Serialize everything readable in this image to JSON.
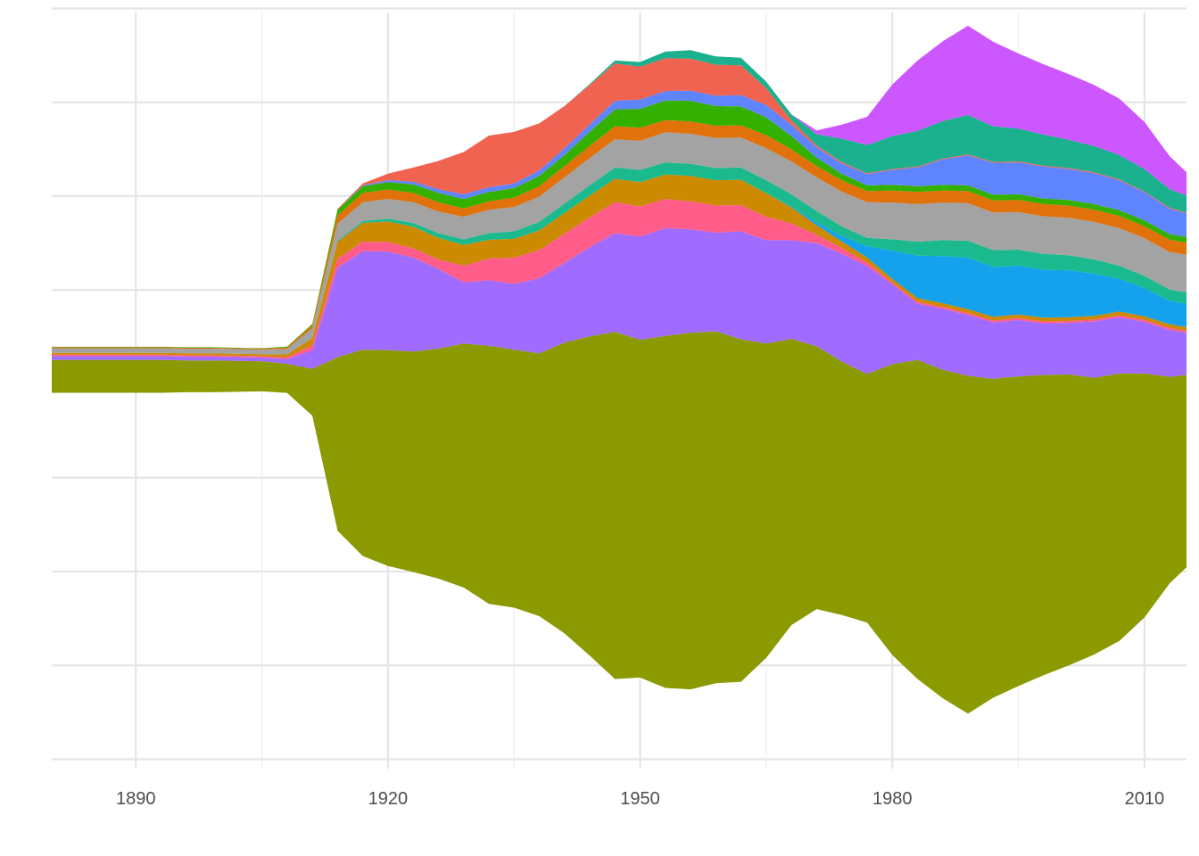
{
  "chart_data": {
    "type": "area",
    "subtype": "streamgraph",
    "title": "",
    "xlabel": "",
    "ylabel": "",
    "xlim": [
      1880,
      2015
    ],
    "ylim": [
      -41000,
      39000
    ],
    "x_ticks": [
      1890,
      1920,
      1950,
      1980,
      2010
    ],
    "x_tick_labels": [
      "1890",
      "1920",
      "1950",
      "1980",
      "2010"
    ],
    "y_gridlines": [
      -40000,
      -30000,
      -20000,
      -10000,
      0,
      10000,
      20000,
      30000,
      40000
    ],
    "y_tick_labels_visible": false,
    "grid": true,
    "legend": "none",
    "background": "#ffffff",
    "x": [
      1880,
      1883,
      1887,
      1890,
      1893,
      1896,
      1899,
      1902,
      1905,
      1908,
      1911,
      1914,
      1917,
      1920,
      1923,
      1926,
      1929,
      1932,
      1935,
      1938,
      1941,
      1944,
      1947,
      1950,
      1953,
      1956,
      1959,
      1962,
      1965,
      1968,
      1971,
      1974,
      1977,
      1980,
      1983,
      1986,
      1989,
      1992,
      1995,
      1998,
      2001,
      2004,
      2007,
      2010,
      2013,
      2015
    ],
    "series": [
      {
        "color": "#8b9a00",
        "values": [
          3500,
          3500,
          3500,
          3500,
          3500,
          3400,
          3400,
          3300,
          3200,
          3100,
          5000,
          18500,
          22000,
          23000,
          23500,
          24500,
          26000,
          27500,
          27500,
          28000,
          31000,
          34000,
          37000,
          36000,
          37500,
          38000,
          37500,
          36500,
          33500,
          30500,
          28000,
          27000,
          26500,
          31000,
          34000,
          35000,
          36000,
          34000,
          33000,
          32000,
          31000,
          29500,
          28500,
          26000,
          22000,
          20500
        ]
      },
      {
        "color": "#a06bff",
        "values": [
          400,
          400,
          400,
          400,
          400,
          400,
          400,
          400,
          400,
          500,
          2000,
          9500,
          10500,
          10500,
          10000,
          8500,
          6500,
          7000,
          7000,
          8000,
          8500,
          9500,
          10500,
          11000,
          11500,
          11000,
          10500,
          11500,
          11000,
          10500,
          11000,
          11500,
          11500,
          8500,
          6000,
          6500,
          6500,
          6000,
          6000,
          5500,
          5500,
          6000,
          6000,
          5500,
          5000,
          4500
        ]
      },
      {
        "color": "#ff5c8a",
        "values": [
          150,
          150,
          150,
          150,
          150,
          150,
          150,
          150,
          150,
          200,
          500,
          1000,
          1000,
          1000,
          1000,
          1000,
          1800,
          2300,
          2800,
          3000,
          3100,
          3200,
          3300,
          3200,
          3100,
          3000,
          2900,
          2800,
          2500,
          1800,
          900,
          600,
          400,
          200,
          200,
          200,
          200,
          200,
          200,
          200,
          200,
          200,
          200,
          200,
          200,
          200
        ]
      },
      {
        "color": "#cc8a00",
        "values": [
          200,
          200,
          200,
          200,
          200,
          200,
          200,
          200,
          200,
          300,
          800,
          1800,
          2000,
          2200,
          2300,
          2300,
          2200,
          2000,
          2000,
          2100,
          2200,
          2300,
          2500,
          2600,
          2600,
          2700,
          2700,
          2700,
          2500,
          1700,
          1000,
          700,
          500,
          400,
          400,
          400,
          400,
          400,
          400,
          400,
          400,
          400,
          400,
          400,
          400,
          400
        ]
      },
      {
        "color": "#13a2eb",
        "values": [
          0,
          0,
          0,
          0,
          0,
          0,
          0,
          0,
          0,
          0,
          0,
          0,
          0,
          0,
          0,
          0,
          0,
          0,
          0,
          0,
          0,
          0,
          0,
          0,
          0,
          0,
          0,
          0,
          0,
          100,
          300,
          600,
          1200,
          3000,
          4500,
          5000,
          5500,
          5300,
          5200,
          5100,
          5000,
          4500,
          3500,
          3000,
          2500,
          2500
        ]
      },
      {
        "color": "#1bb98e",
        "values": [
          0,
          0,
          0,
          0,
          0,
          0,
          0,
          0,
          0,
          0,
          0,
          100,
          200,
          300,
          400,
          500,
          600,
          700,
          800,
          900,
          1000,
          1100,
          1200,
          1300,
          1300,
          1300,
          1300,
          1300,
          1400,
          1300,
          1200,
          1000,
          900,
          1200,
          1500,
          1700,
          1800,
          1800,
          1700,
          1700,
          1600,
          1500,
          1400,
          1300,
          1200,
          1200
        ]
      },
      {
        "color": "#a3a3a3",
        "values": [
          500,
          500,
          500,
          500,
          500,
          500,
          500,
          500,
          500,
          600,
          1000,
          1800,
          2000,
          2100,
          2200,
          2300,
          2400,
          2500,
          2600,
          2700,
          2800,
          2900,
          3000,
          3100,
          3200,
          3200,
          3200,
          3200,
          3400,
          3500,
          3600,
          3700,
          3800,
          3900,
          4000,
          4000,
          4000,
          4000,
          4000,
          4000,
          4000,
          4000,
          4000,
          4000,
          4000,
          4000
        ]
      },
      {
        "color": "#e0710b",
        "values": [
          100,
          100,
          100,
          100,
          100,
          100,
          100,
          100,
          100,
          150,
          300,
          900,
          1000,
          1000,
          1000,
          1000,
          900,
          900,
          1000,
          1100,
          1200,
          1300,
          1400,
          1400,
          1300,
          1300,
          1300,
          1300,
          1400,
          1300,
          1200,
          1200,
          1200,
          1300,
          1300,
          1300,
          1300,
          1300,
          1300,
          1300,
          1300,
          1300,
          1300,
          1300,
          1300,
          1300
        ]
      },
      {
        "color": "#34b000",
        "values": [
          50,
          50,
          50,
          50,
          50,
          50,
          50,
          50,
          50,
          80,
          150,
          600,
          700,
          800,
          900,
          1000,
          1000,
          1000,
          1000,
          1100,
          1200,
          1500,
          1800,
          2000,
          2100,
          2200,
          2100,
          2000,
          1900,
          1400,
          900,
          700,
          600,
          600,
          600,
          600,
          600,
          600,
          600,
          600,
          600,
          600,
          600,
          600,
          600,
          600
        ]
      },
      {
        "color": "#5f84ff",
        "values": [
          0,
          0,
          0,
          0,
          0,
          0,
          0,
          0,
          0,
          0,
          0,
          0,
          100,
          200,
          300,
          400,
          500,
          500,
          500,
          600,
          700,
          800,
          900,
          1000,
          1000,
          1100,
          1100,
          1200,
          1300,
          1200,
          1100,
          1100,
          1200,
          1600,
          2000,
          2700,
          3200,
          3400,
          3400,
          3400,
          3300,
          3300,
          3200,
          3000,
          2700,
          2500
        ]
      },
      {
        "color": "#ef6350",
        "values": [
          0,
          0,
          0,
          0,
          0,
          0,
          0,
          0,
          0,
          0,
          50,
          100,
          200,
          700,
          1500,
          3000,
          4500,
          5500,
          5500,
          5000,
          4500,
          4200,
          4000,
          3500,
          3500,
          3400,
          3300,
          3200,
          1800,
          500,
          200,
          150,
          100,
          100,
          100,
          100,
          100,
          100,
          100,
          100,
          100,
          100,
          100,
          100,
          100,
          100
        ]
      },
      {
        "color": "#1bb08e",
        "values": [
          0,
          0,
          0,
          0,
          0,
          0,
          0,
          0,
          0,
          0,
          0,
          0,
          0,
          0,
          0,
          0,
          0,
          0,
          0,
          0,
          0,
          100,
          300,
          500,
          700,
          900,
          900,
          800,
          700,
          600,
          1200,
          2500,
          3000,
          3500,
          3800,
          4000,
          4200,
          3800,
          3500,
          3300,
          3000,
          2800,
          2600,
          2400,
          2000,
          1800
        ]
      },
      {
        "color": "#cd57ff",
        "values": [
          0,
          0,
          0,
          0,
          0,
          0,
          0,
          0,
          0,
          0,
          0,
          0,
          0,
          0,
          0,
          0,
          0,
          0,
          0,
          0,
          0,
          0,
          0,
          0,
          0,
          0,
          0,
          0,
          0,
          0,
          400,
          1500,
          3000,
          5500,
          7500,
          8500,
          9500,
          9000,
          8000,
          7500,
          7000,
          6500,
          6000,
          5000,
          3500,
          2500
        ]
      }
    ]
  }
}
